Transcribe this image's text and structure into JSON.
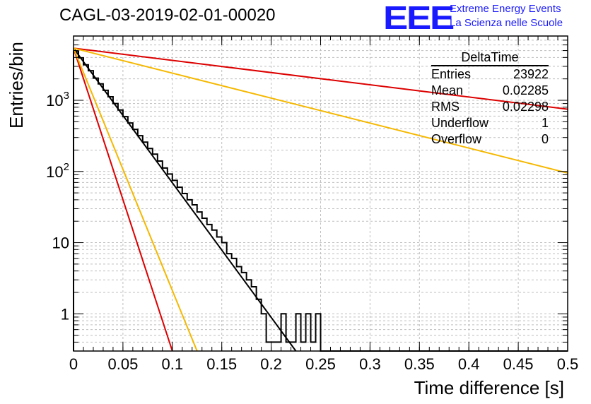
{
  "header": {
    "title": "CAGL-03-2019-02-01-00020"
  },
  "logo": {
    "mark": "EEE",
    "line1": "Extreme Energy Events",
    "line2": "La Scienza nelle Scuole"
  },
  "stats": {
    "name": "DeltaTime",
    "rows": [
      {
        "label": "Entries",
        "value": "23922"
      },
      {
        "label": "Mean",
        "value": "0.02285"
      },
      {
        "label": "RMS",
        "value": "0.02298"
      },
      {
        "label": "Underflow",
        "value": "1"
      },
      {
        "label": "Overflow",
        "value": "0"
      }
    ]
  },
  "chart_data": {
    "type": "line",
    "title": "CAGL-03-2019-02-01-00020",
    "xlabel": "Time difference [s]",
    "ylabel": "Entries/bin",
    "xlim": [
      0,
      0.5
    ],
    "ylim": [
      0.3,
      8000
    ],
    "yscale": "log",
    "grid": true,
    "x_ticks": [
      "0",
      "0.05",
      "0.1",
      "0.15",
      "0.2",
      "0.25",
      "0.3",
      "0.35",
      "0.4",
      "0.45",
      "0.5"
    ],
    "y_ticks": [
      {
        "value": 1,
        "label": "1"
      },
      {
        "value": 10,
        "label": "10"
      },
      {
        "value": 100,
        "label": "10",
        "sup": "2"
      },
      {
        "value": 1000,
        "label": "10",
        "sup": "3"
      }
    ],
    "histogram": {
      "bin_width": 0.005,
      "values": [
        4900,
        3950,
        3150,
        2600,
        2050,
        1700,
        1380,
        1120,
        900,
        730,
        590,
        480,
        390,
        318,
        258,
        210,
        175,
        140,
        112,
        92,
        75,
        60,
        49,
        40,
        34,
        27,
        22,
        18,
        15,
        12,
        10,
        7,
        6,
        4.6,
        3.8,
        3,
        2.4,
        1.6,
        1,
        0.4,
        0.4,
        0.4,
        1,
        0.4,
        0.4,
        1,
        0.4,
        1,
        0.4,
        1,
        0,
        0,
        0,
        0,
        0,
        0,
        0,
        0,
        0,
        0,
        0,
        0,
        0,
        0,
        0,
        0,
        0,
        0,
        0,
        0,
        0,
        0,
        0,
        0,
        0,
        0,
        0,
        0,
        0,
        0,
        0,
        0,
        0,
        0,
        0,
        0,
        0,
        0,
        0,
        0,
        0,
        0,
        0,
        0,
        0,
        0,
        0,
        0,
        0,
        0
      ]
    },
    "series": [
      {
        "color": "#000000",
        "points": [
          [
            0,
            5400
          ],
          [
            0.225,
            0.3
          ]
        ]
      },
      {
        "color": "#dd0000",
        "points": [
          [
            0,
            5400
          ],
          [
            0.5,
            750
          ]
        ]
      },
      {
        "color": "#dd0000",
        "points": [
          [
            0,
            5400
          ],
          [
            0.1,
            0.3
          ]
        ]
      },
      {
        "color": "#f5b800",
        "points": [
          [
            0,
            5400
          ],
          [
            0.5,
            95
          ]
        ]
      },
      {
        "color": "#f5b800",
        "points": [
          [
            0,
            5400
          ],
          [
            0.125,
            0.3
          ]
        ]
      }
    ]
  }
}
